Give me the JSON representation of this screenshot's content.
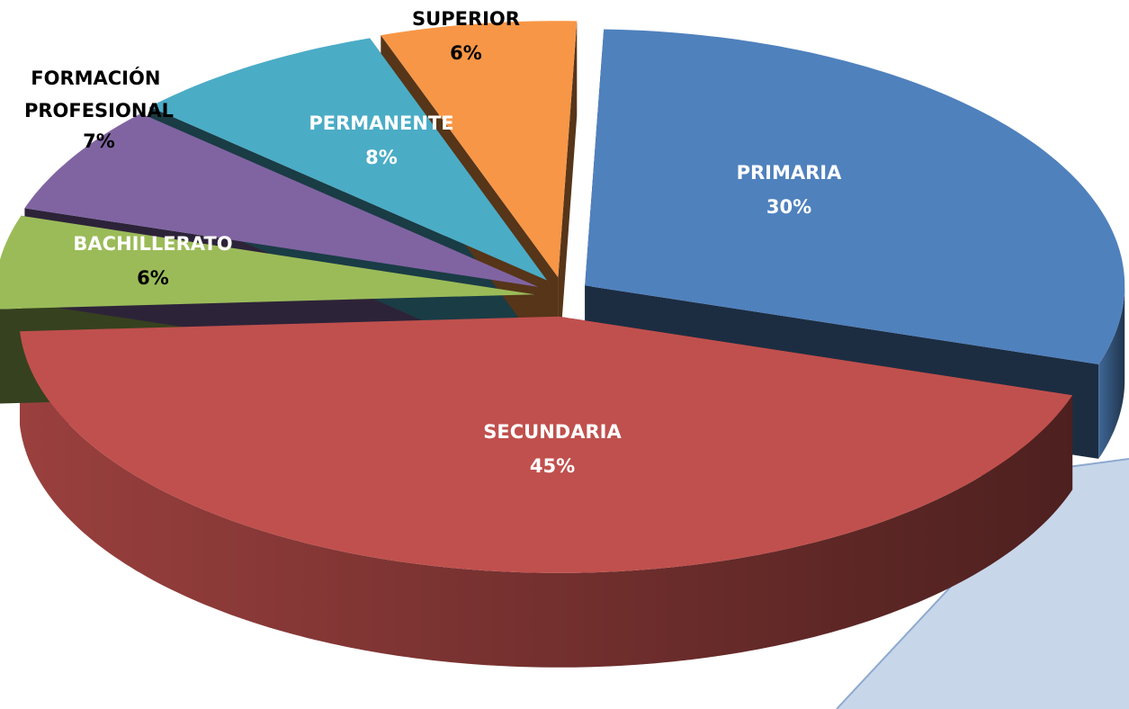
{
  "chart_data": {
    "type": "pie",
    "categories": [
      "PRIMARIA",
      "SECUNDARIA",
      "BACHILLERATO",
      "FORMACIÓN PROFESIONAL",
      "PERMANENTE",
      "SUPERIOR"
    ],
    "values": [
      30,
      45,
      6,
      7,
      8,
      6
    ],
    "value_labels": [
      "30%",
      "45%",
      "6%",
      "7%",
      "8%",
      "6%"
    ],
    "colors": [
      "#4f81bd",
      "#c0504d",
      "#9bbb59",
      "#8064a2",
      "#4bacc6",
      "#f79646"
    ]
  }
}
